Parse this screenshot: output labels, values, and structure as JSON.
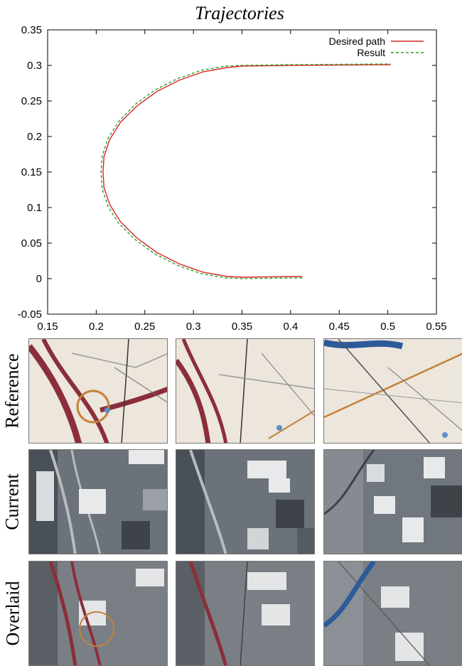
{
  "chart_data": {
    "type": "line",
    "title": "Trajectories",
    "xlabel": "",
    "ylabel": "",
    "xlim": [
      0.15,
      0.55
    ],
    "ylim": [
      -0.05,
      0.35
    ],
    "x_ticks": [
      0.15,
      0.2,
      0.25,
      0.3,
      0.35,
      0.4,
      0.45,
      0.5,
      0.55
    ],
    "y_ticks": [
      -0.05,
      0,
      0.05,
      0.1,
      0.15,
      0.2,
      0.25,
      0.3,
      0.35
    ],
    "legend_position": "top-right",
    "grid": false,
    "series": [
      {
        "name": "Desired path",
        "color": "#d62728",
        "style": "solid",
        "x": [
          0.412,
          0.38,
          0.35,
          0.335,
          0.31,
          0.285,
          0.262,
          0.242,
          0.225,
          0.214,
          0.208,
          0.207,
          0.208,
          0.214,
          0.225,
          0.242,
          0.262,
          0.285,
          0.31,
          0.335,
          0.35,
          0.4,
          0.45,
          0.503
        ],
        "y": [
          0.003,
          0.0025,
          0.002,
          0.003,
          0.009,
          0.021,
          0.037,
          0.057,
          0.08,
          0.104,
          0.128,
          0.15,
          0.172,
          0.196,
          0.22,
          0.243,
          0.263,
          0.279,
          0.291,
          0.297,
          0.299,
          0.3,
          0.3005,
          0.301
        ]
      },
      {
        "name": "Result",
        "color": "#2ca02c",
        "style": "dashed",
        "x": [
          0.412,
          0.38,
          0.35,
          0.333,
          0.308,
          0.283,
          0.26,
          0.24,
          0.223,
          0.212,
          0.206,
          0.205,
          0.206,
          0.212,
          0.223,
          0.24,
          0.26,
          0.283,
          0.308,
          0.333,
          0.35,
          0.4,
          0.45,
          0.503
        ],
        "y": [
          0.001,
          0.0005,
          0.0,
          0.001,
          0.007,
          0.019,
          0.035,
          0.055,
          0.078,
          0.102,
          0.127,
          0.149,
          0.172,
          0.197,
          0.221,
          0.245,
          0.265,
          0.281,
          0.293,
          0.299,
          0.3,
          0.301,
          0.3015,
          0.302
        ]
      }
    ]
  },
  "image_grid": {
    "rows": [
      {
        "label": "Reference"
      },
      {
        "label": "Current"
      },
      {
        "label": "Overlaid"
      }
    ]
  }
}
